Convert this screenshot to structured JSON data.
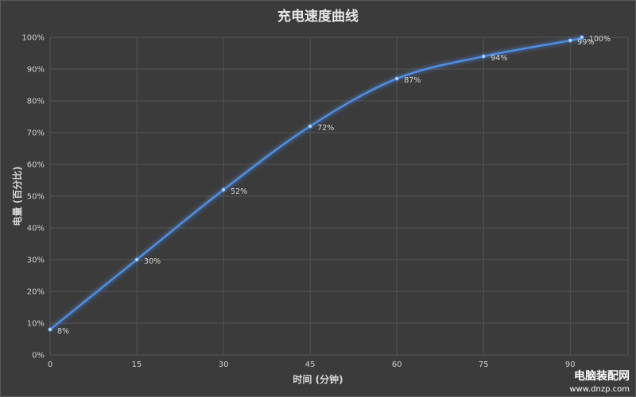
{
  "chart_data": {
    "type": "line",
    "title": "充电速度曲线",
    "xlabel": "时间 (分钟)",
    "ylabel": "电量 (百分比)",
    "xlim": [
      0,
      100
    ],
    "ylim": [
      0,
      100
    ],
    "xticks": [
      0,
      15,
      30,
      45,
      60,
      75,
      90
    ],
    "yticks": [
      0,
      10,
      20,
      30,
      40,
      50,
      60,
      70,
      80,
      90,
      100
    ],
    "x_tick_labels": [
      "0",
      "15",
      "30",
      "45",
      "60",
      "75",
      "90"
    ],
    "y_tick_labels": [
      "0%",
      "10%",
      "20%",
      "30%",
      "40%",
      "50%",
      "60%",
      "70%",
      "80%",
      "90%",
      "100%"
    ],
    "grid": true,
    "legend": "none",
    "series": [
      {
        "x": [
          0,
          15,
          30,
          45,
          60,
          75,
          90,
          92
        ],
        "y": [
          8,
          30,
          52,
          72,
          87,
          94,
          99,
          100
        ],
        "labels": [
          "8%",
          "30%",
          "52%",
          "72%",
          "87%",
          "94%",
          "99%",
          "100%"
        ],
        "color": "#4f8fe6"
      }
    ]
  },
  "watermark": {
    "text": "电脑装配网",
    "url": "www.dnzp.com"
  }
}
